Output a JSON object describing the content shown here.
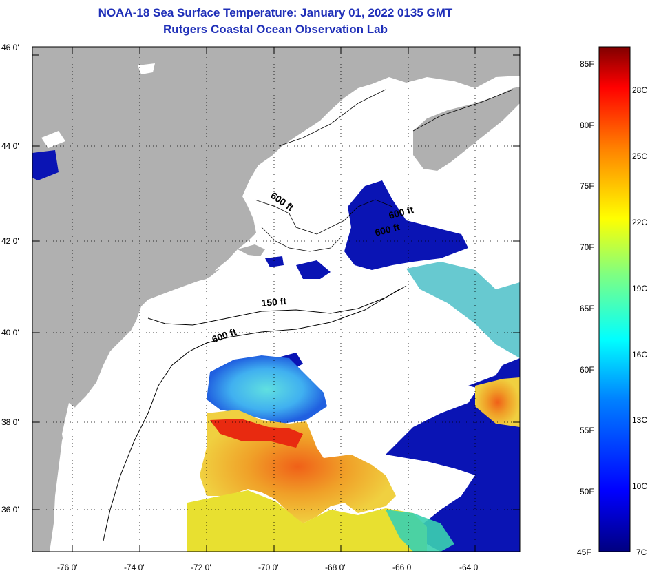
{
  "title": "NOAA-18 Sea Surface Temperature:  January 01, 2022 0135 GMT",
  "subtitle": "Rutgers Coastal Ocean Observation Lab",
  "lat_labels": [
    "46 0'",
    "44 0'",
    "42 0'",
    "40 0'",
    "38 0'",
    "36 0'"
  ],
  "lon_labels": [
    "-76 0'",
    "-74 0'",
    "-72 0'",
    "-70 0'",
    "-68 0'",
    "-66 0'",
    "-64 0'"
  ],
  "contour_labels": [
    "600 ft",
    "600 ft",
    "600 ft",
    "150 ft",
    "600 ft"
  ],
  "colorbar": {
    "f_labels": [
      "85F",
      "80F",
      "75F",
      "70F",
      "65F",
      "60F",
      "55F",
      "50F",
      "45F"
    ],
    "c_labels": [
      "28C",
      "25C",
      "22C",
      "19C",
      "16C",
      "13C",
      "10C",
      "7C"
    ],
    "colors": [
      "#000080",
      "#0000ff",
      "#0080ff",
      "#00ffff",
      "#80ff80",
      "#ffff00",
      "#ff8000",
      "#ff0000",
      "#800000"
    ]
  },
  "legend_colors": {
    "land": "#b0b0b0",
    "no_data": "#ffffff",
    "water_cold": "#0a14b4",
    "water_warm": "#f0a020"
  }
}
